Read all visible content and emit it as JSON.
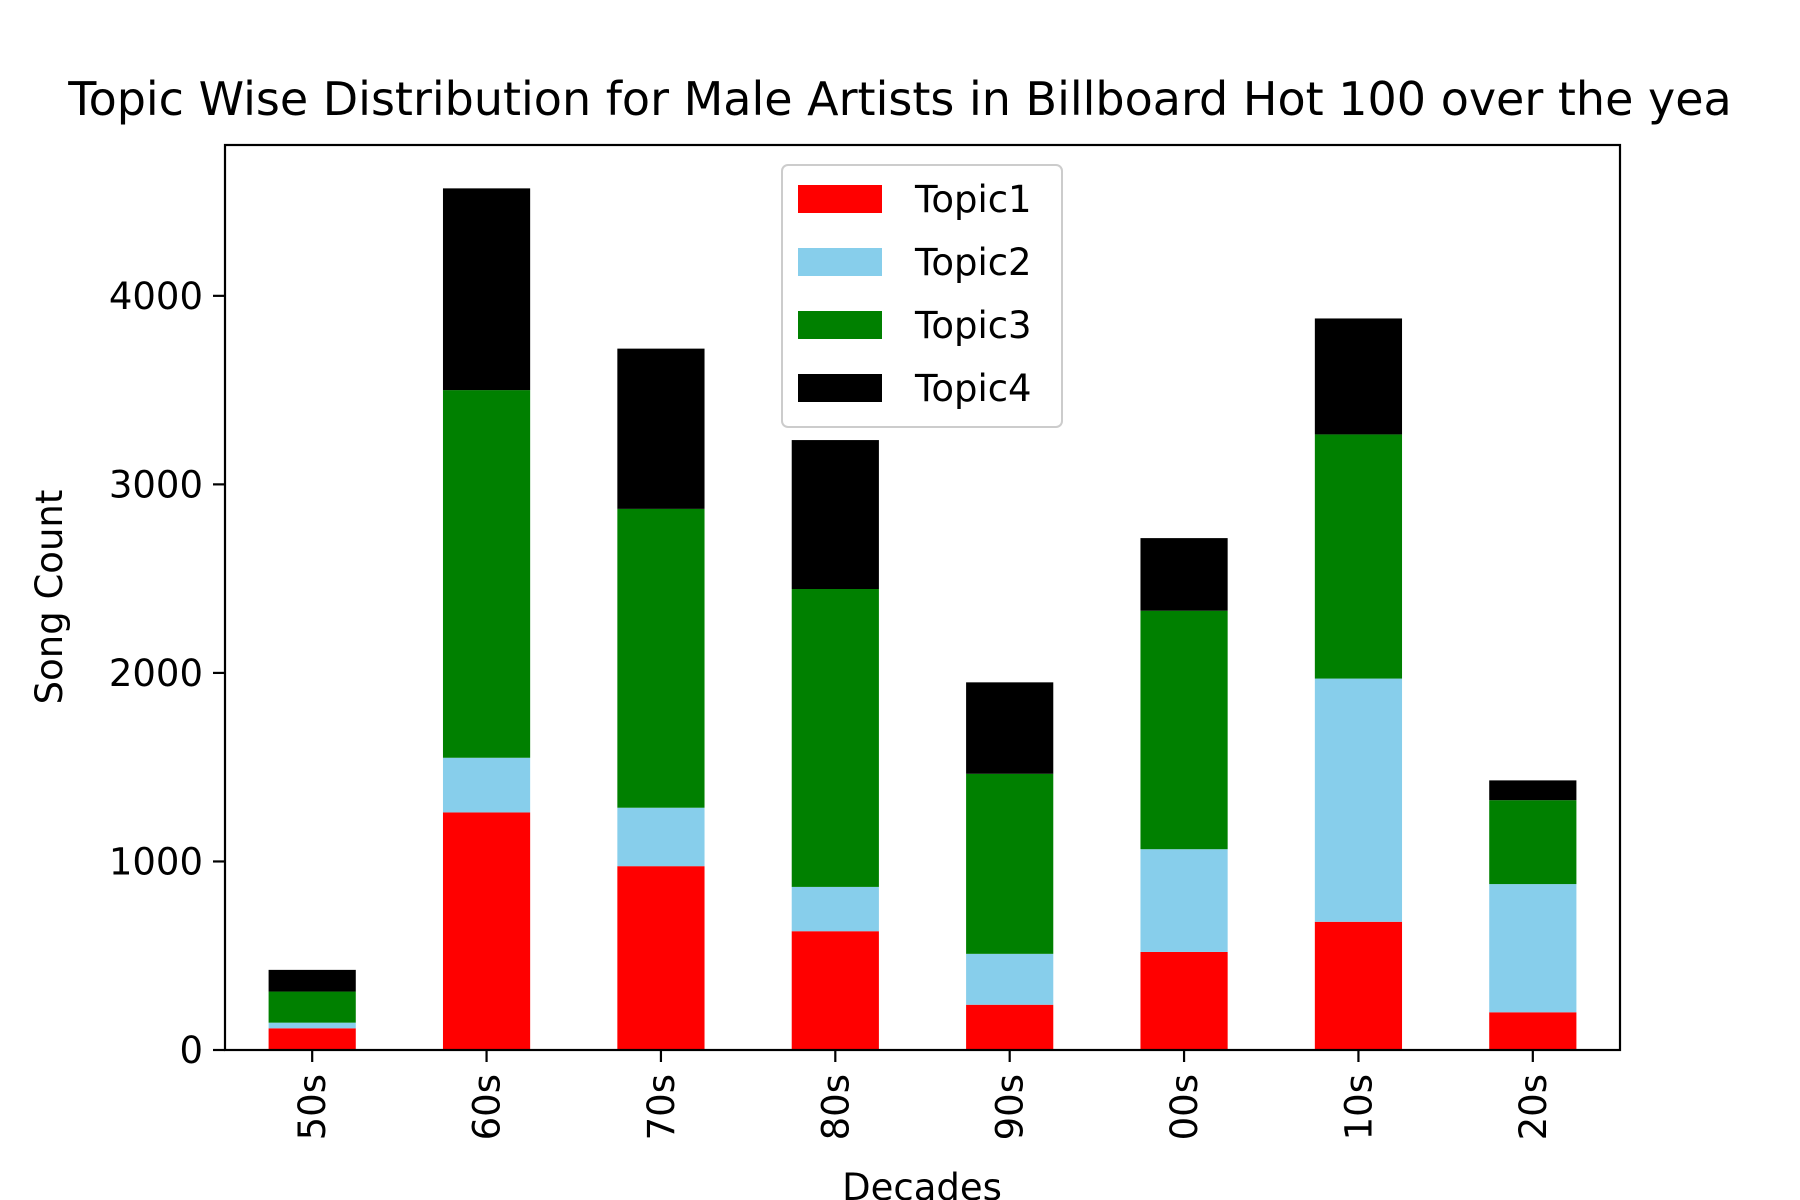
{
  "chart_data": {
    "type": "bar",
    "stacked": true,
    "title": "Topic Wise Distribution for Male Artists in Billboard Hot 100 over the yea",
    "xlabel": "Decades",
    "ylabel": "Song Count",
    "categories": [
      "50s",
      "60s",
      "70s",
      "80s",
      "90s",
      "00s",
      "10s",
      "20s"
    ],
    "series": [
      {
        "name": "Topic1",
        "color": "#ff0000",
        "values": [
          115,
          1260,
          975,
          630,
          240,
          520,
          680,
          200
        ]
      },
      {
        "name": "Topic2",
        "color": "#87ceeb",
        "values": [
          30,
          290,
          310,
          235,
          270,
          545,
          1290,
          680
        ]
      },
      {
        "name": "Topic3",
        "color": "#008000",
        "values": [
          165,
          1950,
          1585,
          1580,
          955,
          1265,
          1295,
          445
        ]
      },
      {
        "name": "Topic4",
        "color": "#000000",
        "values": [
          115,
          1070,
          850,
          790,
          485,
          385,
          615,
          105
        ]
      }
    ],
    "ylim": [
      0,
      4800
    ],
    "yticks": [
      0,
      1000,
      2000,
      3000,
      4000
    ],
    "grid": false,
    "legend_position": "top-center"
  }
}
